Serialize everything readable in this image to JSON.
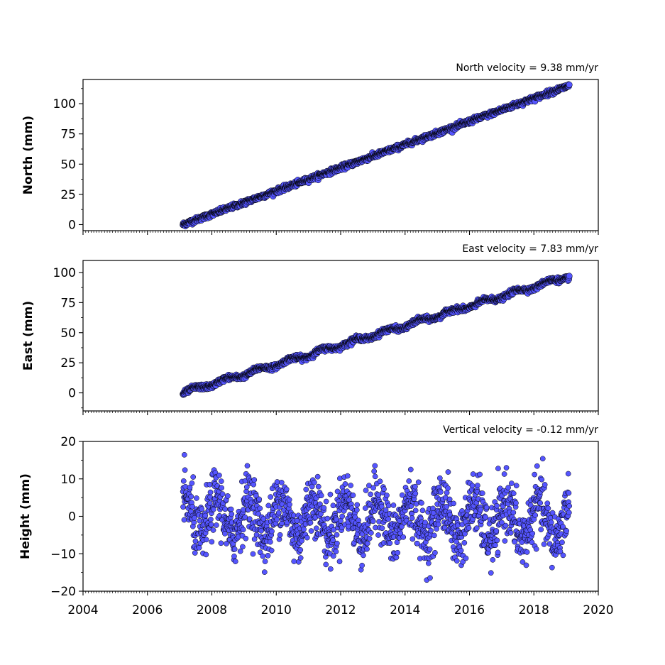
{
  "chart_data": [
    {
      "type": "scatter",
      "panel": "north",
      "annotation": "North velocity = 9.38 mm/yr",
      "ylabel": "North (mm)",
      "xlim": [
        2004,
        2020
      ],
      "ylim": [
        -5,
        120
      ],
      "yticks": [
        0,
        25,
        50,
        75,
        100
      ],
      "x_range": [
        2007.1,
        2019.1
      ],
      "velocity_mm_per_yr": 9.38,
      "start_value": 0,
      "end_value": 115,
      "noise_mm": 1.0
    },
    {
      "type": "scatter",
      "panel": "east",
      "annotation": "East velocity = 7.83 mm/yr",
      "ylabel": "East (mm)",
      "xlim": [
        2004,
        2020
      ],
      "ylim": [
        -15,
        110
      ],
      "yticks": [
        0,
        25,
        50,
        75,
        100
      ],
      "x_range": [
        2007.1,
        2019.1
      ],
      "velocity_mm_per_yr": 7.83,
      "start_value": 0,
      "end_value": 97,
      "seasonal_amplitude_mm": 1.5,
      "noise_mm": 1.0
    },
    {
      "type": "scatter",
      "panel": "height",
      "annotation": "Vertical velocity = -0.12 mm/yr",
      "ylabel": "Height (mm)",
      "xlim": [
        2004,
        2020
      ],
      "ylim": [
        -20,
        20
      ],
      "yticks": [
        -20,
        -10,
        0,
        10,
        20
      ],
      "xticks": [
        2004,
        2006,
        2008,
        2010,
        2012,
        2014,
        2016,
        2018,
        2020
      ],
      "x_range": [
        2007.1,
        2019.1
      ],
      "velocity_mm_per_yr": -0.12,
      "seasonal_amplitude_mm": 5,
      "noise_mm": 4
    }
  ],
  "colors": {
    "marker_fill": "#5555ff",
    "marker_edge": "#000000",
    "axes": "#000000"
  }
}
